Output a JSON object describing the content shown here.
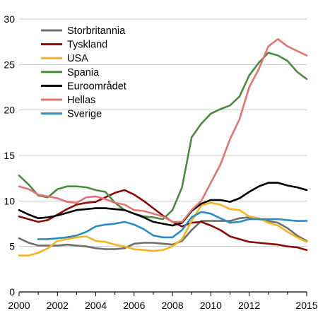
{
  "chart_data": {
    "type": "line",
    "title": "",
    "xlabel": "",
    "ylabel": "",
    "xlim": [
      2000,
      2015
    ],
    "ylim": [
      0,
      30
    ],
    "x_ticks": [
      "2000",
      "2002",
      "2004",
      "2006",
      "2008",
      "2010",
      "2012",
      "2015"
    ],
    "x_tick_values": [
      2000,
      2002,
      2004,
      2006,
      2008,
      2010,
      2012,
      2015
    ],
    "y_ticks": [
      "0",
      "5",
      "10",
      "15",
      "20",
      "25",
      "30"
    ],
    "y_tick_values": [
      0,
      5,
      10,
      15,
      20,
      25,
      30
    ],
    "grid": "horizontal",
    "legend_position": "top-left",
    "series": [
      {
        "name": "Storbritannia",
        "color": "#6e6e6e",
        "points": [
          [
            2000,
            5.9
          ],
          [
            2000.5,
            5.4
          ],
          [
            2001,
            5.1
          ],
          [
            2001.5,
            5.1
          ],
          [
            2002,
            5.1
          ],
          [
            2002.5,
            5.2
          ],
          [
            2003,
            5.1
          ],
          [
            2003.5,
            5.0
          ],
          [
            2004,
            4.8
          ],
          [
            2004.5,
            4.7
          ],
          [
            2005,
            4.7
          ],
          [
            2005.5,
            4.8
          ],
          [
            2006,
            5.3
          ],
          [
            2006.5,
            5.4
          ],
          [
            2007,
            5.4
          ],
          [
            2007.5,
            5.3
          ],
          [
            2008,
            5.2
          ],
          [
            2008.5,
            5.6
          ],
          [
            2009,
            6.8
          ],
          [
            2009.5,
            7.8
          ],
          [
            2010,
            7.8
          ],
          [
            2010.5,
            7.8
          ],
          [
            2011,
            7.8
          ],
          [
            2011.5,
            8.1
          ],
          [
            2012,
            8.2
          ],
          [
            2012.5,
            8.0
          ],
          [
            2013,
            7.8
          ],
          [
            2013.5,
            7.6
          ],
          [
            2014,
            7.0
          ],
          [
            2014.5,
            6.2
          ],
          [
            2015,
            5.6
          ]
        ]
      },
      {
        "name": "Tyskland",
        "color": "#8b0a0a",
        "points": [
          [
            2000,
            8.3
          ],
          [
            2000.5,
            8.0
          ],
          [
            2001,
            7.7
          ],
          [
            2001.5,
            7.9
          ],
          [
            2002,
            8.5
          ],
          [
            2002.5,
            9.1
          ],
          [
            2003,
            9.6
          ],
          [
            2003.5,
            9.8
          ],
          [
            2004,
            9.9
          ],
          [
            2004.5,
            10.4
          ],
          [
            2005,
            10.9
          ],
          [
            2005.5,
            11.2
          ],
          [
            2006,
            10.7
          ],
          [
            2006.5,
            10.0
          ],
          [
            2007,
            9.2
          ],
          [
            2007.5,
            8.4
          ],
          [
            2008,
            7.7
          ],
          [
            2008.5,
            7.2
          ],
          [
            2009,
            7.6
          ],
          [
            2009.5,
            7.7
          ],
          [
            2010,
            7.3
          ],
          [
            2010.5,
            6.8
          ],
          [
            2011,
            6.1
          ],
          [
            2011.5,
            5.8
          ],
          [
            2012,
            5.5
          ],
          [
            2012.5,
            5.4
          ],
          [
            2013,
            5.3
          ],
          [
            2013.5,
            5.2
          ],
          [
            2014,
            5.0
          ],
          [
            2014.5,
            4.9
          ],
          [
            2015,
            4.6
          ]
        ]
      },
      {
        "name": "USA",
        "color": "#f5b41e",
        "points": [
          [
            2000,
            4.0
          ],
          [
            2000.5,
            4.0
          ],
          [
            2001,
            4.3
          ],
          [
            2001.5,
            4.8
          ],
          [
            2002,
            5.6
          ],
          [
            2002.5,
            5.8
          ],
          [
            2003,
            6.0
          ],
          [
            2003.5,
            6.1
          ],
          [
            2004,
            5.6
          ],
          [
            2004.5,
            5.5
          ],
          [
            2005,
            5.2
          ],
          [
            2005.5,
            5.0
          ],
          [
            2006,
            4.7
          ],
          [
            2006.5,
            4.6
          ],
          [
            2007,
            4.5
          ],
          [
            2007.5,
            4.6
          ],
          [
            2008,
            5.0
          ],
          [
            2008.5,
            5.8
          ],
          [
            2009,
            7.8
          ],
          [
            2009.5,
            9.5
          ],
          [
            2010,
            9.8
          ],
          [
            2010.5,
            9.6
          ],
          [
            2011,
            9.1
          ],
          [
            2011.5,
            9.0
          ],
          [
            2012,
            8.3
          ],
          [
            2012.5,
            8.1
          ],
          [
            2013,
            7.6
          ],
          [
            2013.5,
            7.3
          ],
          [
            2014,
            6.6
          ],
          [
            2014.5,
            6.0
          ],
          [
            2015,
            5.5
          ]
        ]
      },
      {
        "name": "Spania",
        "color": "#4a8c3f",
        "points": [
          [
            2000,
            12.8
          ],
          [
            2000.5,
            11.8
          ],
          [
            2001,
            10.6
          ],
          [
            2001.5,
            10.4
          ],
          [
            2002,
            11.3
          ],
          [
            2002.5,
            11.6
          ],
          [
            2003,
            11.6
          ],
          [
            2003.5,
            11.5
          ],
          [
            2004,
            11.2
          ],
          [
            2004.5,
            11.0
          ],
          [
            2005,
            9.8
          ],
          [
            2005.5,
            9.0
          ],
          [
            2006,
            8.6
          ],
          [
            2006.5,
            8.3
          ],
          [
            2007,
            8.2
          ],
          [
            2007.5,
            8.0
          ],
          [
            2008,
            9.0
          ],
          [
            2008.5,
            11.5
          ],
          [
            2009,
            17.0
          ],
          [
            2009.5,
            18.5
          ],
          [
            2010,
            19.6
          ],
          [
            2010.5,
            20.1
          ],
          [
            2011,
            20.5
          ],
          [
            2011.5,
            21.5
          ],
          [
            2012,
            23.8
          ],
          [
            2012.5,
            25.2
          ],
          [
            2013,
            26.3
          ],
          [
            2013.5,
            26.0
          ],
          [
            2014,
            25.4
          ],
          [
            2014.5,
            24.2
          ],
          [
            2015,
            23.4
          ]
        ]
      },
      {
        "name": "Euroområdet",
        "color": "#000000",
        "points": [
          [
            2000,
            9.0
          ],
          [
            2000.5,
            8.5
          ],
          [
            2001,
            8.1
          ],
          [
            2001.5,
            8.2
          ],
          [
            2002,
            8.4
          ],
          [
            2002.5,
            8.7
          ],
          [
            2003,
            9.0
          ],
          [
            2003.5,
            9.1
          ],
          [
            2004,
            9.2
          ],
          [
            2004.5,
            9.2
          ],
          [
            2005,
            9.1
          ],
          [
            2005.5,
            9.0
          ],
          [
            2006,
            8.6
          ],
          [
            2006.5,
            8.2
          ],
          [
            2007,
            7.7
          ],
          [
            2007.5,
            7.5
          ],
          [
            2008,
            7.3
          ],
          [
            2008.5,
            7.6
          ],
          [
            2009,
            8.9
          ],
          [
            2009.5,
            9.7
          ],
          [
            2010,
            10.1
          ],
          [
            2010.5,
            10.1
          ],
          [
            2011,
            9.9
          ],
          [
            2011.5,
            10.3
          ],
          [
            2012,
            11.0
          ],
          [
            2012.5,
            11.6
          ],
          [
            2013,
            12.0
          ],
          [
            2013.5,
            12.0
          ],
          [
            2014,
            11.7
          ],
          [
            2014.5,
            11.5
          ],
          [
            2015,
            11.2
          ]
        ]
      },
      {
        "name": "Hellas",
        "color": "#e57373",
        "points": [
          [
            2000,
            11.6
          ],
          [
            2000.5,
            11.3
          ],
          [
            2001,
            10.7
          ],
          [
            2001.5,
            10.5
          ],
          [
            2002,
            10.3
          ],
          [
            2002.5,
            9.9
          ],
          [
            2003,
            9.8
          ],
          [
            2003.5,
            10.4
          ],
          [
            2004,
            10.5
          ],
          [
            2004.5,
            10.2
          ],
          [
            2005,
            9.8
          ],
          [
            2005.5,
            9.6
          ],
          [
            2006,
            9.0
          ],
          [
            2006.5,
            8.9
          ],
          [
            2007,
            8.6
          ],
          [
            2007.5,
            8.3
          ],
          [
            2008,
            7.7
          ],
          [
            2008.5,
            7.7
          ],
          [
            2009,
            9.0
          ],
          [
            2009.5,
            10.0
          ],
          [
            2010,
            12.0
          ],
          [
            2010.5,
            14.0
          ],
          [
            2011,
            16.8
          ],
          [
            2011.5,
            19.0
          ],
          [
            2012,
            22.5
          ],
          [
            2012.5,
            24.5
          ],
          [
            2013,
            27.0
          ],
          [
            2013.5,
            27.8
          ],
          [
            2014,
            27.0
          ],
          [
            2014.5,
            26.5
          ],
          [
            2015,
            26.0
          ]
        ]
      },
      {
        "name": "Sverige",
        "color": "#2b8cc4",
        "points": [
          [
            2001,
            5.8
          ],
          [
            2001.5,
            5.8
          ],
          [
            2002,
            5.9
          ],
          [
            2002.5,
            6.0
          ],
          [
            2003,
            6.2
          ],
          [
            2003.5,
            6.6
          ],
          [
            2004,
            7.2
          ],
          [
            2004.5,
            7.4
          ],
          [
            2005,
            7.5
          ],
          [
            2005.5,
            7.7
          ],
          [
            2006,
            7.4
          ],
          [
            2006.5,
            6.9
          ],
          [
            2007,
            6.2
          ],
          [
            2007.5,
            6.0
          ],
          [
            2008,
            6.0
          ],
          [
            2008.5,
            6.8
          ],
          [
            2009,
            8.2
          ],
          [
            2009.5,
            8.8
          ],
          [
            2010,
            8.6
          ],
          [
            2010.5,
            8.1
          ],
          [
            2011,
            7.6
          ],
          [
            2011.5,
            7.7
          ],
          [
            2012,
            8.0
          ],
          [
            2012.5,
            8.0
          ],
          [
            2013,
            8.0
          ],
          [
            2013.5,
            8.0
          ],
          [
            2014,
            7.9
          ],
          [
            2014.5,
            7.8
          ],
          [
            2015,
            7.8
          ]
        ]
      }
    ]
  }
}
